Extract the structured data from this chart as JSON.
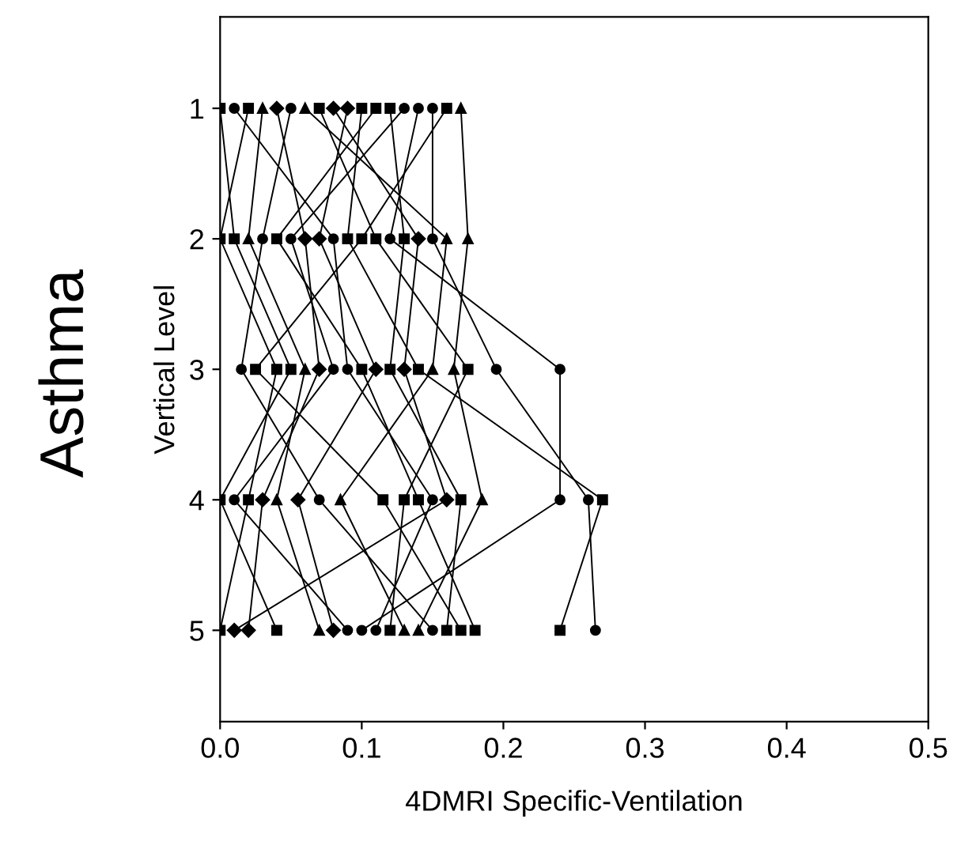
{
  "chart_data": {
    "type": "line",
    "orientation": "horizontal",
    "xlabel": "4DMRI Specific-Ventilation",
    "ylabel": "Vertical Level",
    "annotations": [
      "Asthma"
    ],
    "categories": [
      "1",
      "2",
      "3",
      "4",
      "5"
    ],
    "xlim": [
      0,
      0.5
    ],
    "xticks": [
      {
        "value": 0,
        "label": "0.0"
      },
      0.1,
      0.2,
      0.3,
      0.4,
      0.5
    ],
    "grid": false,
    "legend": false,
    "line_style": "solid",
    "series": [
      {
        "color": "#000000",
        "marker": "triangle",
        "values": [
          0.17,
          0.175,
          0.165,
          0.185,
          0.14
        ]
      },
      {
        "color": "#000000",
        "marker": "circle",
        "values": [
          0.15,
          0.15,
          0.195,
          0.26,
          0.265
        ]
      },
      {
        "color": "#000000",
        "marker": "circle",
        "values": [
          0.14,
          0.12,
          0.24,
          0.24,
          0.1
        ]
      },
      {
        "color": "#000000",
        "marker": "square",
        "values": [
          0.12,
          0.13,
          0.12,
          0.17,
          0.16
        ]
      },
      {
        "color": "#000000",
        "marker": "square",
        "values": [
          0.1,
          0.09,
          0.14,
          0.27,
          0.24
        ]
      },
      {
        "color": "#000000",
        "marker": "square",
        "values": [
          0.11,
          0.04,
          0.1,
          0.14,
          0.18
        ]
      },
      {
        "color": "#000000",
        "marker": "diamond",
        "values": [
          0.09,
          0.07,
          0.11,
          0.055,
          0.08
        ]
      },
      {
        "color": "#000000",
        "marker": "triangle",
        "values": [
          0.06,
          0.16,
          0.15,
          0.085,
          0.13
        ]
      },
      {
        "color": "#000000",
        "marker": "square",
        "values": [
          0.07,
          0.11,
          0.175,
          0.13,
          0.12
        ]
      },
      {
        "color": "#000000",
        "marker": "circle",
        "values": [
          0.05,
          0.03,
          0.015,
          0.07,
          0.15
        ]
      },
      {
        "color": "#000000",
        "marker": "diamond",
        "values": [
          0.04,
          0.06,
          0.07,
          0.03,
          0.02
        ]
      },
      {
        "color": "#000000",
        "marker": "square",
        "values": [
          0.02,
          0.0,
          0.04,
          0.02,
          0.0
        ]
      },
      {
        "color": "#000000",
        "marker": "circle",
        "values": [
          0.01,
          0.08,
          0.09,
          0.15,
          0.11
        ]
      },
      {
        "color": "#000000",
        "marker": "square",
        "values": [
          0.0,
          0.01,
          0.05,
          0.0,
          0.04
        ]
      },
      {
        "color": "#000000",
        "marker": "triangle",
        "values": [
          0.03,
          0.02,
          0.06,
          0.04,
          0.07
        ]
      },
      {
        "color": "#000000",
        "marker": "diamond",
        "values": [
          0.08,
          0.14,
          0.13,
          0.16,
          0.01
        ]
      },
      {
        "color": "#000000",
        "marker": "circle",
        "values": [
          0.13,
          0.05,
          0.08,
          0.01,
          0.09
        ]
      },
      {
        "color": "#000000",
        "marker": "square",
        "values": [
          0.16,
          0.1,
          0.025,
          0.115,
          0.17
        ]
      }
    ]
  }
}
